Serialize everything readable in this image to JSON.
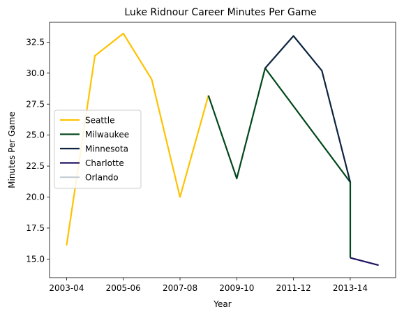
{
  "chart_data": {
    "type": "line",
    "title": "Luke Ridnour Career Minutes Per Game",
    "xlabel": "Year",
    "ylabel": "Minutes Per Game",
    "x_ticks": [
      "2003-04",
      "2005-06",
      "2007-08",
      "2009-10",
      "2011-12",
      "2013-14"
    ],
    "x_tick_positions": [
      0,
      2,
      4,
      6,
      8,
      10
    ],
    "xlim": [
      -0.6,
      11.6
    ],
    "ylim": [
      13.5,
      34.1
    ],
    "y_ticks": [
      15.0,
      17.5,
      20.0,
      22.5,
      25.0,
      27.5,
      30.0,
      32.5
    ],
    "y_tick_labels": [
      "15.0",
      "17.5",
      "20.0",
      "22.5",
      "25.0",
      "27.5",
      "30.0",
      "32.5"
    ],
    "grid": false,
    "legend_position": "center-left",
    "series": [
      {
        "name": "Seattle",
        "color": "#FFC200",
        "x": [
          0,
          1,
          2,
          3,
          4,
          5
        ],
        "values": [
          16.1,
          31.4,
          33.2,
          29.5,
          20.0,
          28.2
        ]
      },
      {
        "name": "Milwaukee",
        "color": "#00471B",
        "x": [
          5,
          6,
          7,
          10,
          10
        ],
        "values": [
          28.2,
          21.5,
          30.4,
          21.2,
          15.1
        ]
      },
      {
        "name": "Minnesota",
        "color": "#0C2340",
        "x": [
          7,
          8,
          9,
          10
        ],
        "values": [
          30.4,
          33.0,
          30.2,
          21.2
        ]
      },
      {
        "name": "Charlotte",
        "color": "#1D1160",
        "x": [
          10,
          11
        ],
        "values": [
          15.1,
          14.5
        ]
      },
      {
        "name": "Orlando",
        "color": "#C4CED4",
        "x": [],
        "values": []
      }
    ]
  }
}
